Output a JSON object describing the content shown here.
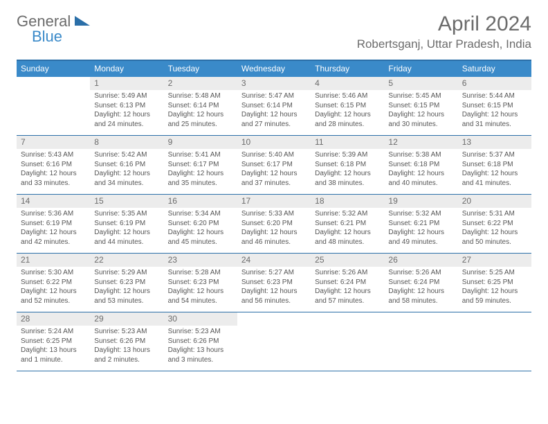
{
  "logo": {
    "part1": "General",
    "part2": "Blue"
  },
  "title": "April 2024",
  "location": "Robertsganj, Uttar Pradesh, India",
  "colors": {
    "header_bar": "#3a8ac9",
    "border": "#2b6fa8",
    "daynum_bg": "#ececec",
    "text": "#555555",
    "title_text": "#6b6b6b"
  },
  "weekdays": [
    "Sunday",
    "Monday",
    "Tuesday",
    "Wednesday",
    "Thursday",
    "Friday",
    "Saturday"
  ],
  "weeks": [
    [
      null,
      {
        "n": "1",
        "sr": "5:49 AM",
        "ss": "6:13 PM",
        "dl": "12 hours and 24 minutes."
      },
      {
        "n": "2",
        "sr": "5:48 AM",
        "ss": "6:14 PM",
        "dl": "12 hours and 25 minutes."
      },
      {
        "n": "3",
        "sr": "5:47 AM",
        "ss": "6:14 PM",
        "dl": "12 hours and 27 minutes."
      },
      {
        "n": "4",
        "sr": "5:46 AM",
        "ss": "6:15 PM",
        "dl": "12 hours and 28 minutes."
      },
      {
        "n": "5",
        "sr": "5:45 AM",
        "ss": "6:15 PM",
        "dl": "12 hours and 30 minutes."
      },
      {
        "n": "6",
        "sr": "5:44 AM",
        "ss": "6:15 PM",
        "dl": "12 hours and 31 minutes."
      }
    ],
    [
      {
        "n": "7",
        "sr": "5:43 AM",
        "ss": "6:16 PM",
        "dl": "12 hours and 33 minutes."
      },
      {
        "n": "8",
        "sr": "5:42 AM",
        "ss": "6:16 PM",
        "dl": "12 hours and 34 minutes."
      },
      {
        "n": "9",
        "sr": "5:41 AM",
        "ss": "6:17 PM",
        "dl": "12 hours and 35 minutes."
      },
      {
        "n": "10",
        "sr": "5:40 AM",
        "ss": "6:17 PM",
        "dl": "12 hours and 37 minutes."
      },
      {
        "n": "11",
        "sr": "5:39 AM",
        "ss": "6:18 PM",
        "dl": "12 hours and 38 minutes."
      },
      {
        "n": "12",
        "sr": "5:38 AM",
        "ss": "6:18 PM",
        "dl": "12 hours and 40 minutes."
      },
      {
        "n": "13",
        "sr": "5:37 AM",
        "ss": "6:18 PM",
        "dl": "12 hours and 41 minutes."
      }
    ],
    [
      {
        "n": "14",
        "sr": "5:36 AM",
        "ss": "6:19 PM",
        "dl": "12 hours and 42 minutes."
      },
      {
        "n": "15",
        "sr": "5:35 AM",
        "ss": "6:19 PM",
        "dl": "12 hours and 44 minutes."
      },
      {
        "n": "16",
        "sr": "5:34 AM",
        "ss": "6:20 PM",
        "dl": "12 hours and 45 minutes."
      },
      {
        "n": "17",
        "sr": "5:33 AM",
        "ss": "6:20 PM",
        "dl": "12 hours and 46 minutes."
      },
      {
        "n": "18",
        "sr": "5:32 AM",
        "ss": "6:21 PM",
        "dl": "12 hours and 48 minutes."
      },
      {
        "n": "19",
        "sr": "5:32 AM",
        "ss": "6:21 PM",
        "dl": "12 hours and 49 minutes."
      },
      {
        "n": "20",
        "sr": "5:31 AM",
        "ss": "6:22 PM",
        "dl": "12 hours and 50 minutes."
      }
    ],
    [
      {
        "n": "21",
        "sr": "5:30 AM",
        "ss": "6:22 PM",
        "dl": "12 hours and 52 minutes."
      },
      {
        "n": "22",
        "sr": "5:29 AM",
        "ss": "6:23 PM",
        "dl": "12 hours and 53 minutes."
      },
      {
        "n": "23",
        "sr": "5:28 AM",
        "ss": "6:23 PM",
        "dl": "12 hours and 54 minutes."
      },
      {
        "n": "24",
        "sr": "5:27 AM",
        "ss": "6:23 PM",
        "dl": "12 hours and 56 minutes."
      },
      {
        "n": "25",
        "sr": "5:26 AM",
        "ss": "6:24 PM",
        "dl": "12 hours and 57 minutes."
      },
      {
        "n": "26",
        "sr": "5:26 AM",
        "ss": "6:24 PM",
        "dl": "12 hours and 58 minutes."
      },
      {
        "n": "27",
        "sr": "5:25 AM",
        "ss": "6:25 PM",
        "dl": "12 hours and 59 minutes."
      }
    ],
    [
      {
        "n": "28",
        "sr": "5:24 AM",
        "ss": "6:25 PM",
        "dl": "13 hours and 1 minute."
      },
      {
        "n": "29",
        "sr": "5:23 AM",
        "ss": "6:26 PM",
        "dl": "13 hours and 2 minutes."
      },
      {
        "n": "30",
        "sr": "5:23 AM",
        "ss": "6:26 PM",
        "dl": "13 hours and 3 minutes."
      },
      null,
      null,
      null,
      null
    ]
  ],
  "labels": {
    "sunrise": "Sunrise:",
    "sunset": "Sunset:",
    "daylight": "Daylight:"
  }
}
